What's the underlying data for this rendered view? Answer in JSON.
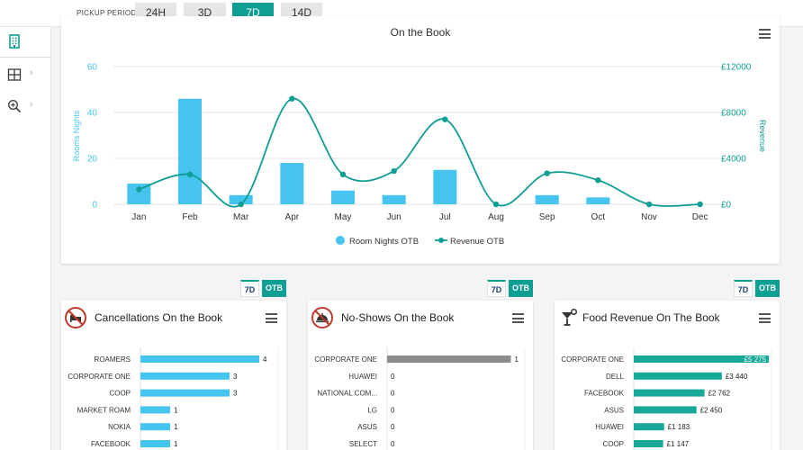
{
  "topbar": {
    "pickup_label": "PICKUP PERIOD:",
    "periods": [
      {
        "label": "24H",
        "active": false
      },
      {
        "label": "3D",
        "active": false
      },
      {
        "label": "7D",
        "active": true
      },
      {
        "label": "14D",
        "active": false
      }
    ]
  },
  "nav": {
    "icons": [
      "building-icon",
      "grid-icon",
      "zoom-icon"
    ]
  },
  "main_chart": {
    "title": "On the Book",
    "legend": [
      "Room Nights OTB",
      "Revenue OTB"
    ]
  },
  "chart_data": {
    "type": "bar",
    "title": "On the Book",
    "categories": [
      "Jan",
      "Feb",
      "Mar",
      "Apr",
      "May",
      "Jun",
      "Jul",
      "Aug",
      "Sep",
      "Oct",
      "Nov",
      "Dec"
    ],
    "ylabel": "Rooms Nights",
    "y2label": "Revenue",
    "ylim": [
      0,
      60
    ],
    "y_ticks": [
      "0",
      "20",
      "40",
      "60"
    ],
    "y2lim": [
      0,
      12000
    ],
    "y2_ticks": [
      "£0",
      "£4000",
      "£8000",
      "£12000"
    ],
    "grid": true,
    "legend_position": "bottom",
    "series": [
      {
        "name": "Room Nights OTB",
        "kind": "bar",
        "color": "#45c4f0",
        "values": [
          9,
          46,
          4,
          18,
          6,
          4,
          15,
          0,
          4,
          3,
          0,
          0
        ]
      },
      {
        "name": "Revenue OTB",
        "kind": "line",
        "color": "#0f9e94",
        "values": [
          1300,
          2600,
          0,
          9200,
          2600,
          2900,
          7400,
          0,
          2700,
          2100,
          0,
          0
        ]
      }
    ]
  },
  "cards": [
    {
      "title": "Cancellations On the Book",
      "icon": "no-bed-icon",
      "tags": [
        "7D",
        "OTB"
      ],
      "bar_color": "#45c4f0",
      "label_inside": false,
      "max": 5,
      "rows": [
        {
          "label": "ROAMERS",
          "value": 4,
          "text": "4"
        },
        {
          "label": "CORPORATE ONE",
          "value": 3,
          "text": "3"
        },
        {
          "label": "COOP",
          "value": 3,
          "text": "3"
        },
        {
          "label": "MARKET ROAM",
          "value": 1,
          "text": "1"
        },
        {
          "label": "NOKIA",
          "value": 1,
          "text": "1"
        },
        {
          "label": "FACEBOOK",
          "value": 1,
          "text": "1"
        }
      ]
    },
    {
      "title": "No-Shows On the Book",
      "icon": "no-service-icon",
      "tags": [
        "7D",
        "OTB"
      ],
      "bar_color": "#8c8c8c",
      "label_inside": false,
      "max": 1.2,
      "rows": [
        {
          "label": "CORPORATE ONE",
          "value": 1,
          "text": "1"
        },
        {
          "label": "HUAWEI",
          "value": 0,
          "text": "0"
        },
        {
          "label": "NATIONAL COM...",
          "value": 0,
          "text": "0"
        },
        {
          "label": "LG",
          "value": 0,
          "text": "0"
        },
        {
          "label": "ASUS",
          "value": 0,
          "text": "0"
        },
        {
          "label": "SELECT",
          "value": 0,
          "text": "0"
        }
      ]
    },
    {
      "title": "Food Revenue On The Book",
      "icon": "cocktail-icon",
      "tags": [
        "7D",
        "OTB"
      ],
      "bar_color": "#17a89a",
      "label_inside": true,
      "max": 5800,
      "rows": [
        {
          "label": "CORPORATE ONE",
          "value": 5275,
          "text": "£5 275"
        },
        {
          "label": "DELL",
          "value": 3440,
          "text": "£3 440"
        },
        {
          "label": "FACEBOOK",
          "value": 2762,
          "text": "£2 762"
        },
        {
          "label": "ASUS",
          "value": 2450,
          "text": "£2 450"
        },
        {
          "label": "HUAWEI",
          "value": 1183,
          "text": "£1 183"
        },
        {
          "label": "COOP",
          "value": 1147,
          "text": "£1 147"
        }
      ]
    }
  ]
}
